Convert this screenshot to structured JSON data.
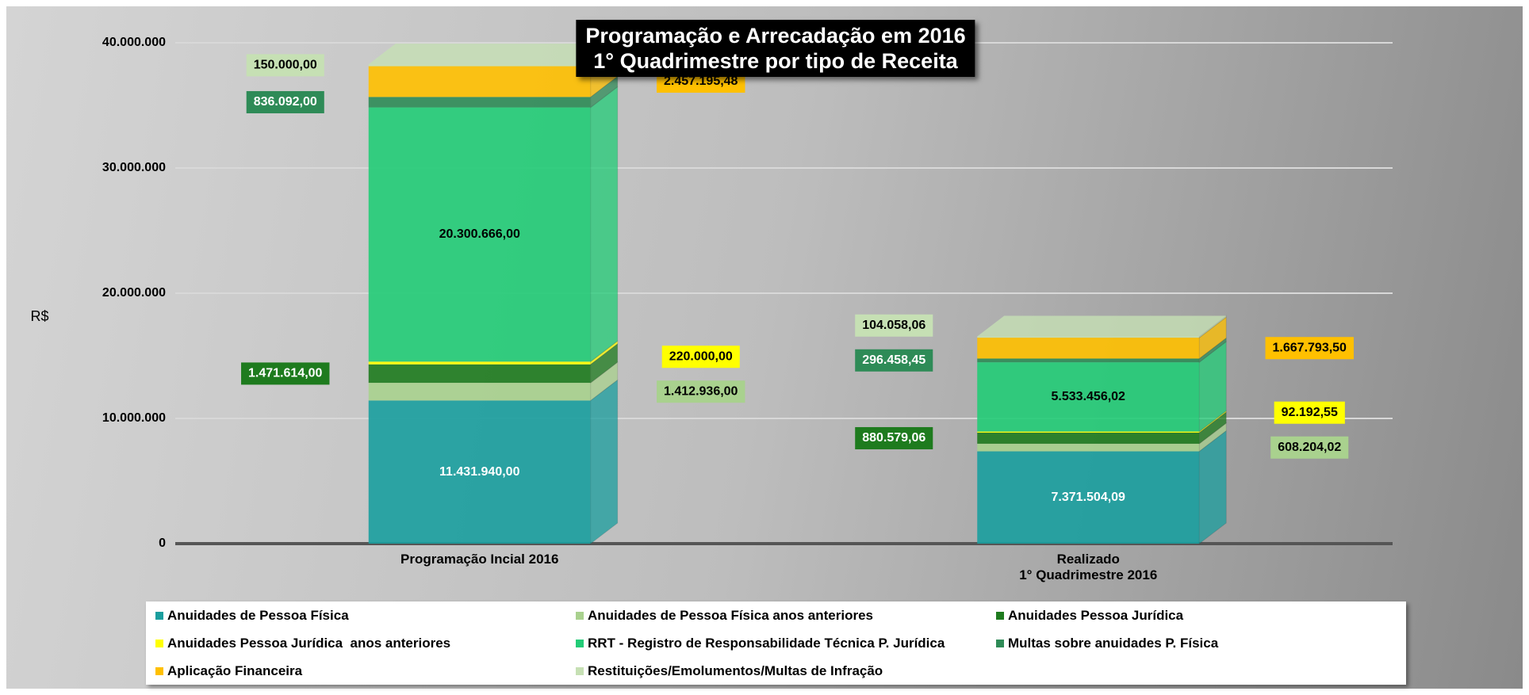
{
  "chart_data": {
    "type": "bar",
    "stacked": true,
    "title": "Programação e Arrecadação em 2016\n1° Quadrimestre por tipo de Receita",
    "y_label": "R$",
    "categories": [
      "Programação Incial 2016",
      "Realizado\n1° Quadrimestre 2016"
    ],
    "ylim": [
      0,
      40000000
    ],
    "yticks": [
      0,
      {
        "value": 10000000,
        "label": "10.000.000"
      },
      {
        "value": 20000000,
        "label": "20.000.000"
      },
      {
        "value": 30000000,
        "label": "30.000.000"
      },
      {
        "value": 40000000,
        "label": "40.000.000"
      }
    ],
    "grid": true,
    "series": [
      {
        "name": "Anuidades de Pessoa Física",
        "color": "#1a9e9e",
        "values": [
          11431940.0,
          7371504.09
        ],
        "value_labels": [
          "11.431.940,00",
          "7.371.504,09"
        ]
      },
      {
        "name": "Anuidades de Pessoa Física anos anteriores",
        "color": "#a9d18e",
        "values": [
          1412936.0,
          608204.02
        ],
        "value_labels": [
          "1.412.936,00",
          "608.204,02"
        ]
      },
      {
        "name": "Anuidades Pessoa Jurídica",
        "color": "#1e7b1e",
        "values": [
          1471614.0,
          880579.06
        ],
        "value_labels": [
          "1.471.614,00",
          "880.579,06"
        ]
      },
      {
        "name": "Anuidades Pessoa Jurídica  anos anteriores",
        "color": "#ffff00",
        "values": [
          220000.0,
          92192.55
        ],
        "value_labels": [
          "220.000,00",
          "92.192,55"
        ]
      },
      {
        "name": "RRT - Registro de Responsabilidade Técnica P. Jurídica",
        "color": "#22cc77",
        "values": [
          20300666.0,
          5533456.02
        ],
        "value_labels": [
          "20.300.666,00",
          "5.533.456,02"
        ]
      },
      {
        "name": "Multas sobre anuidades P. Física",
        "color": "#2e8b57",
        "values": [
          836092.0,
          296458.45
        ],
        "value_labels": [
          "836.092,00",
          "296.458,45"
        ]
      },
      {
        "name": "Aplicação Financeira",
        "color": "#ffc000",
        "values": [
          2457195.48,
          1667793.5
        ],
        "value_labels": [
          "2.457.195,48",
          "1.667.793,50"
        ]
      },
      {
        "name": "Restituições/Emolumentos/Multas de Infração",
        "color": "#c6e0b4",
        "values": [
          150000.0,
          104058.06
        ],
        "value_labels": [
          "150.000,00",
          "104.058,06"
        ]
      }
    ]
  }
}
